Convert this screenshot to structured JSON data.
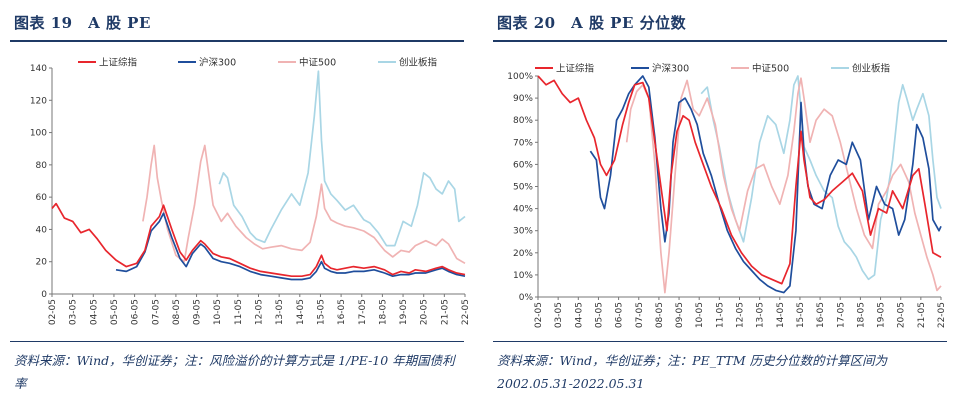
{
  "figures": [
    {
      "title": "图表 19　A 股 PE",
      "source": "资料来源：Wind，华创证券；注：风险溢价的计算方式是 1/PE-10 年期国债利率"
    },
    {
      "title": "图表 20　A 股 PE 分位数",
      "source": "资料来源：Wind，华创证券；注：PE_TTM 历史分位数的计算区间为 2002.05.31-2022.05.31"
    }
  ],
  "chart_data": [
    {
      "type": "line",
      "title": "图表 19　A 股 PE",
      "ylim": [
        0,
        140
      ],
      "yticks": [
        0,
        20,
        40,
        60,
        80,
        100,
        120,
        140
      ],
      "categories": [
        "02-05",
        "03-05",
        "04-05",
        "05-05",
        "06-05",
        "07-05",
        "08-05",
        "09-05",
        "10-05",
        "11-05",
        "12-05",
        "13-05",
        "14-05",
        "15-05",
        "16-05",
        "17-05",
        "18-05",
        "19-05",
        "20-05",
        "21-05",
        "22-05"
      ],
      "legend": "top",
      "grid": false,
      "series": [
        {
          "name": "上证综指",
          "color": "#e8262d",
          "x": [
            2002.4,
            2002.6,
            2003.0,
            2003.4,
            2003.8,
            2004.2,
            2004.6,
            2005.0,
            2005.5,
            2006.0,
            2006.5,
            2006.9,
            2007.2,
            2007.6,
            2007.8,
            2008.2,
            2008.6,
            2008.9,
            2009.2,
            2009.6,
            2009.8,
            2010.2,
            2010.6,
            2011.0,
            2011.5,
            2012.0,
            2012.5,
            2013.0,
            2013.5,
            2014.0,
            2014.5,
            2014.9,
            2015.2,
            2015.45,
            2015.6,
            2015.9,
            2016.2,
            2016.6,
            2017.0,
            2017.5,
            2018.0,
            2018.5,
            2018.9,
            2019.3,
            2019.7,
            2020.0,
            2020.5,
            2021.0,
            2021.3,
            2021.6,
            2022.0,
            2022.4
          ],
          "values": [
            53,
            56,
            47,
            45,
            38,
            40,
            34,
            27,
            21,
            17,
            19,
            27,
            42,
            48,
            55,
            40,
            26,
            21,
            27,
            33,
            31,
            25,
            23,
            22,
            19,
            16,
            14,
            13,
            12,
            11,
            11,
            12,
            17,
            24,
            19,
            16,
            15,
            16,
            17,
            16,
            17,
            15,
            12,
            14,
            13,
            15,
            14,
            16,
            17,
            15,
            13,
            12
          ]
        },
        {
          "name": "沪深300",
          "color": "#1f4e9c",
          "x": [
            2005.5,
            2006.0,
            2006.5,
            2006.9,
            2007.2,
            2007.6,
            2007.8,
            2008.2,
            2008.6,
            2008.9,
            2009.2,
            2009.6,
            2009.8,
            2010.2,
            2010.6,
            2011.0,
            2011.5,
            2012.0,
            2012.5,
            2013.0,
            2013.5,
            2014.0,
            2014.5,
            2014.9,
            2015.2,
            2015.45,
            2015.6,
            2015.9,
            2016.2,
            2016.6,
            2017.0,
            2017.5,
            2018.0,
            2018.5,
            2018.9,
            2019.3,
            2019.7,
            2020.0,
            2020.5,
            2021.0,
            2021.3,
            2021.6,
            2022.0,
            2022.4
          ],
          "values": [
            15,
            14,
            17,
            26,
            39,
            45,
            50,
            35,
            22,
            17,
            25,
            31,
            29,
            22,
            20,
            19,
            17,
            14,
            12,
            11,
            10,
            9,
            9,
            10,
            14,
            20,
            16,
            14,
            13,
            13,
            14,
            14,
            15,
            13,
            11,
            12,
            12,
            13,
            13,
            15,
            16,
            14,
            12,
            11
          ]
        },
        {
          "name": "中证500",
          "color": "#f0b3b3",
          "x": [
            2006.8,
            2007.0,
            2007.2,
            2007.35,
            2007.5,
            2007.7,
            2008.0,
            2008.4,
            2008.8,
            2009.0,
            2009.3,
            2009.6,
            2009.8,
            2010.2,
            2010.6,
            2010.9,
            2011.3,
            2011.8,
            2012.2,
            2012.6,
            2013.0,
            2013.5,
            2014.0,
            2014.5,
            2014.9,
            2015.2,
            2015.45,
            2015.6,
            2015.9,
            2016.2,
            2016.6,
            2017.0,
            2017.5,
            2018.0,
            2018.5,
            2018.9,
            2019.3,
            2019.7,
            2020.0,
            2020.5,
            2021.0,
            2021.3,
            2021.6,
            2022.0,
            2022.4
          ],
          "values": [
            45,
            60,
            80,
            92,
            72,
            58,
            40,
            24,
            20,
            35,
            55,
            82,
            92,
            55,
            45,
            50,
            42,
            35,
            31,
            28,
            29,
            30,
            28,
            27,
            32,
            48,
            68,
            53,
            46,
            44,
            42,
            41,
            39,
            35,
            27,
            23,
            27,
            26,
            30,
            33,
            30,
            34,
            31,
            22,
            19
          ]
        },
        {
          "name": "创业板指",
          "color": "#a9d6e5",
          "x": [
            2010.5,
            2010.7,
            2010.9,
            2011.2,
            2011.6,
            2012.0,
            2012.3,
            2012.7,
            2013.0,
            2013.5,
            2014.0,
            2014.4,
            2014.8,
            2015.1,
            2015.3,
            2015.45,
            2015.6,
            2015.9,
            2016.2,
            2016.6,
            2017.0,
            2017.5,
            2017.8,
            2018.2,
            2018.6,
            2019.0,
            2019.4,
            2019.8,
            2020.1,
            2020.4,
            2020.7,
            2021.0,
            2021.3,
            2021.6,
            2021.9,
            2022.1,
            2022.4
          ],
          "values": [
            68,
            75,
            72,
            55,
            48,
            38,
            34,
            32,
            40,
            52,
            62,
            55,
            75,
            110,
            138,
            95,
            70,
            62,
            58,
            52,
            55,
            46,
            44,
            38,
            30,
            30,
            45,
            42,
            55,
            75,
            72,
            65,
            62,
            70,
            65,
            45,
            48
          ]
        }
      ]
    },
    {
      "type": "line",
      "title": "图表 20　A 股 PE 分位数",
      "ylim": [
        0,
        100
      ],
      "yticks": [
        "0%",
        "10%",
        "20%",
        "30%",
        "40%",
        "50%",
        "60%",
        "70%",
        "80%",
        "90%",
        "100%"
      ],
      "categories": [
        "02-05",
        "03-05",
        "04-05",
        "05-05",
        "06-05",
        "07-05",
        "08-05",
        "09-05",
        "10-05",
        "11-05",
        "12-05",
        "13-05",
        "14-05",
        "15-05",
        "16-05",
        "17-05",
        "18-05",
        "19-05",
        "20-05",
        "21-05",
        "22-05"
      ],
      "legend": "top",
      "grid": false,
      "series": [
        {
          "name": "上证综指",
          "color": "#e8262d",
          "x": [
            2002.4,
            2002.8,
            2003.2,
            2003.6,
            2004.0,
            2004.4,
            2004.8,
            2005.2,
            2005.5,
            2005.8,
            2006.2,
            2006.6,
            2006.9,
            2007.2,
            2007.6,
            2007.9,
            2008.2,
            2008.5,
            2008.8,
            2009.0,
            2009.3,
            2009.6,
            2009.9,
            2010.2,
            2010.6,
            2011.0,
            2011.5,
            2012.0,
            2012.5,
            2013.0,
            2013.5,
            2014.0,
            2014.5,
            2014.9,
            2015.2,
            2015.45,
            2015.6,
            2015.9,
            2016.2,
            2016.6,
            2017.0,
            2017.5,
            2018.0,
            2018.5,
            2018.9,
            2019.3,
            2019.7,
            2020.0,
            2020.5,
            2021.0,
            2021.3,
            2021.6,
            2022.0,
            2022.4
          ],
          "values": [
            100,
            96,
            98,
            92,
            88,
            90,
            80,
            72,
            60,
            55,
            62,
            78,
            88,
            96,
            97,
            90,
            70,
            50,
            30,
            55,
            75,
            82,
            80,
            70,
            60,
            50,
            40,
            28,
            20,
            14,
            10,
            8,
            6,
            15,
            50,
            75,
            62,
            45,
            42,
            44,
            48,
            52,
            56,
            48,
            28,
            40,
            38,
            48,
            40,
            55,
            58,
            42,
            20,
            18
          ]
        },
        {
          "name": "沪深300",
          "color": "#1f4e9c",
          "x": [
            2005.0,
            2005.3,
            2005.5,
            2005.7,
            2006.0,
            2006.3,
            2006.6,
            2006.9,
            2007.2,
            2007.6,
            2007.9,
            2008.2,
            2008.5,
            2008.7,
            2008.9,
            2009.1,
            2009.4,
            2009.7,
            2010.0,
            2010.3,
            2010.6,
            2011.0,
            2011.4,
            2011.8,
            2012.2,
            2012.6,
            2013.0,
            2013.4,
            2013.8,
            2014.2,
            2014.6,
            2014.9,
            2015.2,
            2015.45,
            2015.6,
            2015.8,
            2016.1,
            2016.5,
            2016.9,
            2017.3,
            2017.7,
            2018.0,
            2018.4,
            2018.8,
            2019.2,
            2019.6,
            2020.0,
            2020.3,
            2020.6,
            2021.0,
            2021.2,
            2021.5,
            2021.8,
            2022.0,
            2022.3,
            2022.4
          ],
          "values": [
            66,
            62,
            45,
            40,
            55,
            80,
            85,
            92,
            96,
            100,
            95,
            72,
            40,
            25,
            38,
            70,
            88,
            90,
            85,
            78,
            65,
            55,
            42,
            30,
            22,
            16,
            12,
            8,
            5,
            3,
            2,
            5,
            30,
            88,
            65,
            50,
            42,
            40,
            55,
            62,
            60,
            70,
            62,
            35,
            50,
            42,
            40,
            28,
            35,
            60,
            78,
            72,
            58,
            35,
            30,
            32
          ]
        },
        {
          "name": "中证500",
          "color": "#f0b3b3",
          "x": [
            2006.8,
            2007.0,
            2007.3,
            2007.6,
            2007.9,
            2008.2,
            2008.5,
            2008.7,
            2008.9,
            2009.2,
            2009.5,
            2009.8,
            2010.1,
            2010.4,
            2010.8,
            2011.2,
            2011.6,
            2012.0,
            2012.4,
            2012.8,
            2013.2,
            2013.6,
            2014.0,
            2014.4,
            2014.8,
            2015.1,
            2015.3,
            2015.45,
            2015.6,
            2015.9,
            2016.2,
            2016.6,
            2017.0,
            2017.4,
            2017.8,
            2018.2,
            2018.6,
            2019.0,
            2019.3,
            2019.7,
            2020.0,
            2020.4,
            2020.8,
            2021.1,
            2021.4,
            2021.7,
            2022.0,
            2022.2,
            2022.4
          ],
          "values": [
            70,
            85,
            93,
            96,
            90,
            60,
            20,
            2,
            20,
            55,
            90,
            98,
            85,
            82,
            90,
            78,
            55,
            40,
            30,
            48,
            58,
            60,
            50,
            42,
            55,
            75,
            92,
            99,
            90,
            70,
            80,
            85,
            82,
            70,
            55,
            40,
            28,
            22,
            42,
            48,
            55,
            60,
            52,
            38,
            28,
            18,
            10,
            3,
            5
          ]
        },
        {
          "name": "创业板指",
          "color": "#a9d6e5",
          "x": [
            2010.5,
            2010.8,
            2011.1,
            2011.4,
            2011.8,
            2012.2,
            2012.6,
            2013.0,
            2013.4,
            2013.8,
            2014.2,
            2014.6,
            2014.9,
            2015.1,
            2015.3,
            2015.45,
            2015.6,
            2015.9,
            2016.2,
            2016.6,
            2017.0,
            2017.3,
            2017.6,
            2017.9,
            2018.2,
            2018.5,
            2018.8,
            2019.1,
            2019.4,
            2019.7,
            2020.0,
            2020.3,
            2020.5,
            2020.7,
            2021.0,
            2021.2,
            2021.5,
            2021.8,
            2022.0,
            2022.2,
            2022.4
          ],
          "values": [
            92,
            95,
            80,
            68,
            48,
            35,
            25,
            45,
            70,
            82,
            78,
            65,
            80,
            96,
            100,
            85,
            68,
            62,
            55,
            48,
            45,
            32,
            25,
            22,
            18,
            12,
            8,
            10,
            35,
            45,
            62,
            88,
            96,
            90,
            80,
            85,
            92,
            82,
            62,
            45,
            40
          ]
        }
      ]
    }
  ]
}
